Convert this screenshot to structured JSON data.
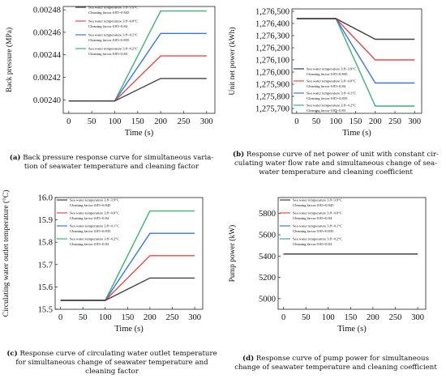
{
  "colors": {
    "black": "#404040",
    "red": "#e84a4a",
    "blue": "#3b78d8",
    "green": "#3cb371"
  },
  "legend_entries": [
    {
      "l1": "Sea water temperature  3.8~3.9°C",
      "l2": "Cleaning factor 0.85~0.845"
    },
    {
      "l1": "Sea water temperature  3.8~4.0°C",
      "l2": "Cleaning factor 0.85~0.84"
    },
    {
      "l1": "Sea water temperature  3.8~4.1°C",
      "l2": "Cleaning factor 0.85~0.835"
    },
    {
      "l1": "Sea water temperature  3.8~4.2°C",
      "l2": "Cleaning factor 0.85~0.83"
    }
  ],
  "captions": {
    "a": {
      "tag": "(a)",
      "text": " Back pressure response curve for simultaneous varia-|tion of seawater temperature and cleaning factor"
    },
    "b": {
      "tag": "(b)",
      "text": " Response curve of net power of unit with constant cir-|culating water flow rate and simultaneous change of sea-|water temperature and cleaning coefficient"
    },
    "c": {
      "tag": "(c)",
      "text": " Response curve of circulating water outlet temperature|for simultaneous change of seawater temperature and|cleaning factor"
    },
    "d": {
      "tag": "(d)",
      "text": " Response curve of pump power for simultaneous|change of seawater temperature and cleaning coefficient"
    }
  },
  "chart_data": [
    {
      "id": "a",
      "type": "line",
      "xlabel": "Time (s)",
      "ylabel": "Back pressure (MPa)",
      "xlim": [
        -12,
        318
      ],
      "ylim": [
        0.002388,
        0.002483
      ],
      "xticks": [
        0,
        50,
        100,
        150,
        200,
        250,
        300
      ],
      "yticks": [
        0.0024,
        0.00242,
        0.00244,
        0.00246,
        0.00248
      ],
      "ytick_labels": [
        "0.00240",
        "0.00242",
        "0.00244",
        "0.00246",
        "0.00248"
      ],
      "x": [
        0,
        100,
        200,
        300
      ],
      "series": [
        {
          "name": "Sea water temperature 3.8~3.9°C / Cleaning factor 0.85~0.845",
          "color": "black",
          "values": [
            0.002399,
            0.002399,
            0.002419,
            0.002419
          ]
        },
        {
          "name": "Sea water temperature 3.8~4.0°C / Cleaning factor 0.85~0.84",
          "color": "red",
          "values": [
            0.002399,
            0.002399,
            0.002439,
            0.002439
          ]
        },
        {
          "name": "Sea water temperature 3.8~4.1°C / Cleaning factor 0.85~0.835",
          "color": "blue",
          "values": [
            0.002399,
            0.002399,
            0.002459,
            0.002459
          ]
        },
        {
          "name": "Sea water temperature 3.8~4.2°C / Cleaning factor 0.85~0.83",
          "color": "green",
          "values": [
            0.002399,
            0.002399,
            0.002479,
            0.002479
          ]
        }
      ],
      "legend_position": "top-left"
    },
    {
      "id": "b",
      "type": "line",
      "xlabel": "Time (s)",
      "ylabel": "Unit net power (kWh)",
      "xlim": [
        -12,
        318
      ],
      "ylim": [
        1275660,
        1276520
      ],
      "xticks": [
        0,
        50,
        100,
        150,
        200,
        250,
        300
      ],
      "yticks": [
        1275700,
        1275800,
        1275900,
        1276000,
        1276100,
        1276200,
        1276300,
        1276400,
        1276500
      ],
      "ytick_labels": [
        "1,275,700",
        "1,275,800",
        "1,275,900",
        "1,276,000",
        "1,276,100",
        "1,276,200",
        "1,276,300",
        "1,276,400",
        "1,276,500"
      ],
      "x": [
        0,
        100,
        200,
        300
      ],
      "series": [
        {
          "name": "Sea water temperature 3.8~3.9°C / Cleaning factor 0.85~0.845",
          "color": "black",
          "values": [
            1276440,
            1276440,
            1276270,
            1276270
          ]
        },
        {
          "name": "Sea water temperature 3.8~4.0°C / Cleaning factor 0.85~0.84",
          "color": "red",
          "values": [
            1276440,
            1276440,
            1276100,
            1276100
          ]
        },
        {
          "name": "Sea water temperature 3.8~4.1°C / Cleaning factor 0.85~0.835",
          "color": "blue",
          "values": [
            1276440,
            1276440,
            1275910,
            1275910
          ]
        },
        {
          "name": "Sea water temperature 3.8~4.2°C / Cleaning factor 0.85~0.83",
          "color": "green",
          "values": [
            1276440,
            1276440,
            1275720,
            1275720
          ]
        }
      ],
      "legend_position": "right"
    },
    {
      "id": "c",
      "type": "line",
      "xlabel": "Time (s)",
      "ylabel": "Circulating water outlet temperature (°C)",
      "xlim": [
        -12,
        318
      ],
      "ylim": [
        15.5,
        16.0
      ],
      "xticks": [
        0,
        50,
        100,
        150,
        200,
        250,
        300
      ],
      "yticks": [
        15.5,
        15.6,
        15.7,
        15.8,
        15.9,
        16.0
      ],
      "ytick_labels": [
        "15.5",
        "15.6",
        "15.7",
        "15.8",
        "15.9",
        "16.0"
      ],
      "x": [
        0,
        100,
        200,
        300
      ],
      "series": [
        {
          "name": "Sea water temperature 3.8~3.9°C / Cleaning factor 0.85~0.845",
          "color": "black",
          "values": [
            15.54,
            15.54,
            15.64,
            15.64
          ]
        },
        {
          "name": "Sea water temperature 3.8~4.0°C / Cleaning factor 0.85~0.84",
          "color": "red",
          "values": [
            15.54,
            15.54,
            15.74,
            15.74
          ]
        },
        {
          "name": "Sea water temperature 3.8~4.1°C / Cleaning factor 0.85~0.835",
          "color": "blue",
          "values": [
            15.54,
            15.54,
            15.84,
            15.84
          ]
        },
        {
          "name": "Sea water temperature 3.8~4.2°C / Cleaning factor 0.85~0.83",
          "color": "green",
          "values": [
            15.54,
            15.54,
            15.94,
            15.94
          ]
        }
      ],
      "legend_position": "top-left"
    },
    {
      "id": "d",
      "type": "line",
      "xlabel": "Time (s)",
      "ylabel": "Pump power (kW)",
      "xlim": [
        -12,
        318
      ],
      "ylim": [
        4900,
        5950
      ],
      "xticks": [
        0,
        50,
        100,
        150,
        200,
        250,
        300
      ],
      "yticks": [
        5000,
        5200,
        5400,
        5600,
        5800
      ],
      "ytick_labels": [
        "5000",
        "5200",
        "5400",
        "5600",
        "5800"
      ],
      "x": [
        0,
        100,
        200,
        300
      ],
      "series": [
        {
          "name": "Sea water temperature 3.8~3.9°C / Cleaning factor 0.85~0.845",
          "color": "black",
          "values": [
            5420,
            5420,
            5420,
            5420
          ]
        },
        {
          "name": "Sea water temperature 3.8~4.0°C / Cleaning factor 0.85~0.84",
          "color": "red",
          "values": [
            5420,
            5420,
            5420,
            5420
          ]
        },
        {
          "name": "Sea water temperature 3.8~4.1°C / Cleaning factor 0.85~0.835",
          "color": "blue",
          "values": [
            5420,
            5420,
            5420,
            5420
          ]
        },
        {
          "name": "Sea water temperature 3.8~4.2°C / Cleaning factor 0.85~0.83",
          "color": "green",
          "values": [
            5420,
            5420,
            5420,
            5420
          ]
        }
      ],
      "legend_position": "top-left"
    }
  ]
}
